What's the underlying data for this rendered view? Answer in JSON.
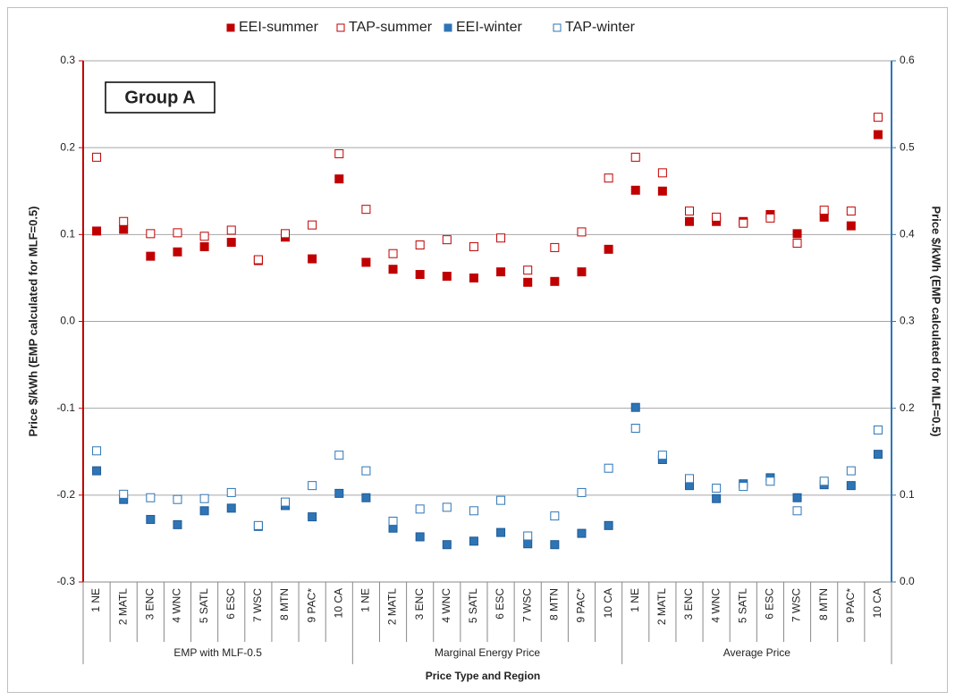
{
  "chart_data": {
    "type": "scatter",
    "annotation": "Group A",
    "y_label": "Price $/kWh (EMP calculated for MLF=0.5)",
    "y2_label": "Price $/kWh (EMP calculated for MLF=0.5)",
    "x_label": "Price Type and Region",
    "categories": [
      "1 NE",
      "2 MATL",
      "3 ENC",
      "4 WNC",
      "5 SATL",
      "6 ESC",
      "7 WSC",
      "8 MTN",
      "9 PAC*",
      "10 CA",
      "1 NE",
      "2 MATL",
      "3 ENC",
      "4 WNC",
      "5 SATL",
      "6 ESC",
      "7 WSC",
      "8 MTN",
      "9 PAC*",
      "10 CA",
      "1 NE",
      "2 MATL",
      "3 ENC",
      "4 WNC",
      "5 SATL",
      "6 ESC",
      "7 WSC",
      "8 MTN",
      "9 PAC*",
      "10 CA"
    ],
    "category_groups": [
      "EMP with MLF-0.5",
      "Marginal Energy Price",
      "Average Price"
    ],
    "ylim": [
      -0.3,
      0.3
    ],
    "yticks": [
      -0.3,
      -0.2,
      -0.1,
      {
        "value": 0,
        "label": "0.0"
      },
      0.1,
      0.2,
      0.3
    ],
    "y2lim": [
      0,
      0.6
    ],
    "y2ticks": [
      {
        "value": 0,
        "label": "0.0"
      },
      0.1,
      0.2,
      0.3,
      0.4,
      0.5,
      0.6
    ],
    "grid": true,
    "legend": "top",
    "y_color": "#c00000",
    "y2_color": "#2e75b6",
    "series": [
      {
        "name": "EEI-summer",
        "color": "#c00000",
        "filled": true,
        "values": [
          0.104,
          0.106,
          0.075,
          0.08,
          0.086,
          0.091,
          0.07,
          0.097,
          0.072,
          0.164,
          0.068,
          0.06,
          0.054,
          0.052,
          0.05,
          0.057,
          0.045,
          0.046,
          0.057,
          0.083,
          0.151,
          0.15,
          0.115,
          0.115,
          0.115,
          0.123,
          0.101,
          0.12,
          0.11,
          0.215
        ]
      },
      {
        "name": "TAP-summer",
        "color": "#c00000",
        "filled": false,
        "values": [
          0.189,
          0.115,
          0.101,
          0.102,
          0.098,
          0.105,
          0.071,
          0.101,
          0.111,
          0.193,
          0.129,
          0.078,
          0.088,
          0.094,
          0.086,
          0.096,
          0.059,
          0.085,
          0.103,
          0.165,
          0.189,
          0.171,
          0.127,
          0.12,
          0.113,
          0.119,
          0.09,
          0.128,
          0.127,
          0.235
        ]
      },
      {
        "name": "EEI-winter",
        "color": "#2e75b6",
        "filled": true,
        "axis": "y2",
        "values": [
          0.128,
          0.095,
          0.072,
          0.066,
          0.082,
          0.085,
          0.064,
          0.088,
          0.075,
          0.102,
          0.097,
          0.062,
          0.052,
          0.043,
          0.047,
          0.057,
          0.044,
          0.043,
          0.056,
          0.065,
          0.201,
          0.141,
          0.111,
          0.096,
          0.113,
          0.12,
          0.097,
          0.112,
          0.111,
          0.147
        ]
      },
      {
        "name": "TAP-winter",
        "color": "#2e75b6",
        "filled": false,
        "axis": "y2",
        "values": [
          0.151,
          0.101,
          0.097,
          0.095,
          0.096,
          0.103,
          0.065,
          0.092,
          0.111,
          0.146,
          0.128,
          0.07,
          0.084,
          0.086,
          0.082,
          0.094,
          0.053,
          0.076,
          0.103,
          0.131,
          0.177,
          0.146,
          0.119,
          0.108,
          0.11,
          0.116,
          0.082,
          0.116,
          0.128,
          0.175
        ]
      }
    ]
  }
}
